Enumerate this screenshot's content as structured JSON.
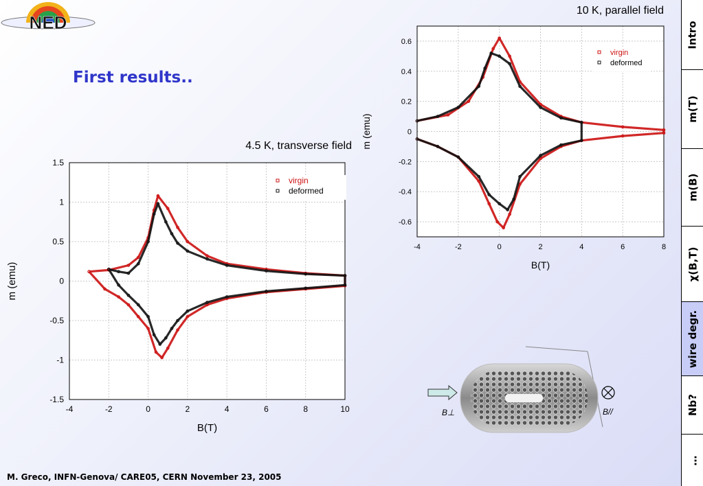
{
  "header": {
    "logo_text": "NED",
    "title": "First results.."
  },
  "footer": {
    "text": "M. Greco, INFN-Genova/ CARE05, CERN November 23, 2005"
  },
  "nav": {
    "tabs": [
      {
        "label": "Intro",
        "active": false
      },
      {
        "label": "m(T)",
        "active": false
      },
      {
        "label": "m(B)",
        "active": false
      },
      {
        "label": "χ(B,T)",
        "active": false
      },
      {
        "label": "wire degr.",
        "active": true
      },
      {
        "label": "Nb?",
        "active": false
      },
      {
        "label": "…",
        "active": false
      }
    ]
  },
  "wire": {
    "label_perp": "B⊥",
    "label_par": "B//"
  },
  "colors": {
    "virgin": "#cc1111",
    "deformed": "#111111",
    "accent": "#2f35c9",
    "nav_active": "#c7cdf7"
  },
  "chart_data": [
    {
      "type": "scatter",
      "title": "4.5 K, transverse field",
      "xlabel": "B(T)",
      "ylabel": "m (emu)",
      "xlim": [
        -4,
        10
      ],
      "ylim": [
        -1.5,
        1.5
      ],
      "xticks": [
        "-4",
        "-2",
        "0",
        "2",
        "4",
        "6",
        "8",
        "10"
      ],
      "yticks": [
        "-1.5",
        "-1",
        "-0.5",
        "0",
        "0.5",
        "1",
        "1.5"
      ],
      "grid": true,
      "legend": "top-right",
      "series": [
        {
          "name": "virgin",
          "color": "#cc1111",
          "x": [
            -3.0,
            -2.2,
            -1.5,
            -1.0,
            -0.5,
            0.0,
            0.4,
            0.7,
            1.0,
            1.5,
            2.0,
            3.0,
            4.0,
            6.0,
            8.0,
            10.0,
            10.0,
            8.0,
            6.0,
            4.0,
            3.0,
            2.0,
            1.5,
            1.0,
            0.5,
            0.3,
            0.0,
            -0.5,
            -1.0,
            -2.0,
            -3.0
          ],
          "y": [
            0.12,
            -0.1,
            -0.2,
            -0.3,
            -0.45,
            -0.6,
            -0.9,
            -0.97,
            -0.85,
            -0.62,
            -0.45,
            -0.3,
            -0.22,
            -0.14,
            -0.1,
            -0.06,
            0.07,
            0.1,
            0.15,
            0.22,
            0.32,
            0.5,
            0.68,
            0.92,
            1.08,
            0.9,
            0.55,
            0.3,
            0.2,
            0.14,
            0.12
          ]
        },
        {
          "name": "deformed",
          "color": "#111111",
          "x": [
            -2.0,
            -1.5,
            -1.0,
            -0.5,
            0.0,
            0.3,
            0.6,
            0.9,
            1.2,
            1.5,
            2.0,
            3.0,
            4.0,
            6.0,
            8.0,
            10.0,
            10.0,
            8.0,
            6.0,
            4.0,
            3.0,
            2.0,
            1.5,
            1.2,
            0.9,
            0.5,
            0.3,
            0.0,
            -0.5,
            -1.0,
            -1.5,
            -2.0
          ],
          "y": [
            0.15,
            -0.05,
            -0.18,
            -0.3,
            -0.45,
            -0.68,
            -0.8,
            -0.72,
            -0.6,
            -0.5,
            -0.38,
            -0.27,
            -0.2,
            -0.13,
            -0.09,
            -0.05,
            0.07,
            0.09,
            0.13,
            0.2,
            0.28,
            0.38,
            0.48,
            0.6,
            0.75,
            0.98,
            0.85,
            0.5,
            0.22,
            0.1,
            0.12,
            0.15
          ]
        }
      ]
    },
    {
      "type": "scatter",
      "title": "10 K, parallel field",
      "xlabel": "B(T)",
      "ylabel": "m (emu)",
      "xlim": [
        -4,
        8
      ],
      "ylim": [
        -0.7,
        0.7
      ],
      "xticks": [
        "-4",
        "-2",
        "0",
        "2",
        "4",
        "6",
        "8"
      ],
      "yticks": [
        "-0.6",
        "-0.4",
        "-0.2",
        "0",
        "0.2",
        "0.4",
        "0.6"
      ],
      "grid": true,
      "legend": "top-right",
      "series": [
        {
          "name": "virgin",
          "color": "#cc1111",
          "x": [
            -4.0,
            -3.0,
            -2.0,
            -1.0,
            -0.5,
            -0.1,
            0.2,
            0.5,
            1.0,
            2.0,
            3.0,
            4.0,
            6.0,
            8.0,
            8.0,
            6.0,
            4.0,
            3.0,
            2.0,
            1.0,
            0.5,
            0.0,
            -0.3,
            -0.8,
            -1.5,
            -2.5,
            -4.0
          ],
          "y": [
            -0.05,
            -0.1,
            -0.17,
            -0.33,
            -0.48,
            -0.6,
            -0.64,
            -0.55,
            -0.35,
            -0.18,
            -0.1,
            -0.06,
            -0.03,
            -0.01,
            0.01,
            0.03,
            0.06,
            0.1,
            0.18,
            0.33,
            0.5,
            0.62,
            0.55,
            0.36,
            0.2,
            0.11,
            0.07
          ]
        },
        {
          "name": "deformed",
          "color": "#111111",
          "x": [
            -4.0,
            -3.0,
            -2.0,
            -1.0,
            -0.5,
            0.0,
            0.4,
            0.7,
            1.0,
            2.0,
            3.0,
            4.0,
            4.0,
            3.0,
            2.0,
            1.0,
            0.5,
            0.0,
            -0.4,
            -0.7,
            -1.0,
            -2.0,
            -3.0,
            -4.0
          ],
          "y": [
            -0.05,
            -0.1,
            -0.17,
            -0.3,
            -0.42,
            -0.48,
            -0.52,
            -0.45,
            -0.3,
            -0.16,
            -0.09,
            -0.06,
            0.06,
            0.09,
            0.16,
            0.3,
            0.45,
            0.5,
            0.52,
            0.42,
            0.3,
            0.16,
            0.1,
            0.07
          ]
        }
      ]
    }
  ]
}
